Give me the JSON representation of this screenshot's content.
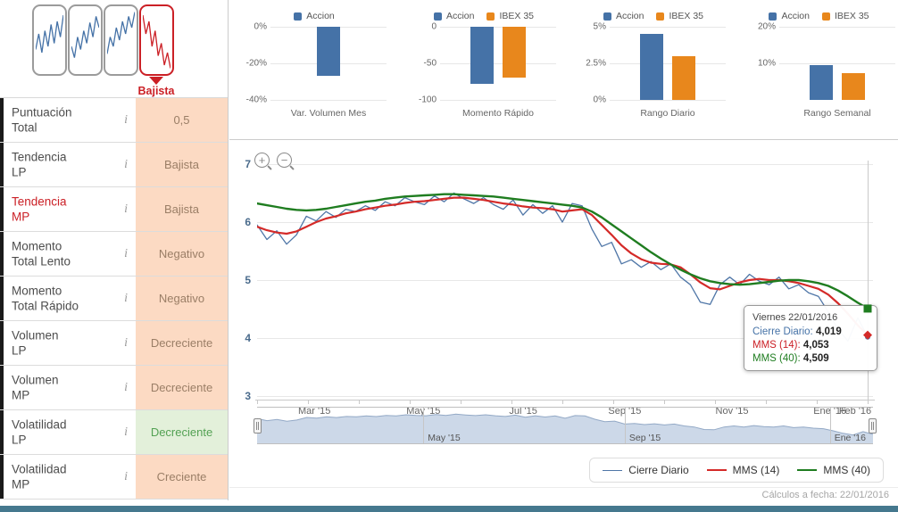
{
  "icons": {
    "info": "i",
    "zoom_in": "+",
    "zoom_out": "−"
  },
  "colors": {
    "accion": "#4572a7",
    "ibex": "#e8871c",
    "cierre": "#4f76a7",
    "mms14": "#d42a28",
    "mms40": "#1f7d20",
    "nav_fill": "#ccd8e8",
    "nav_line": "#93a9c6",
    "negative_bg": "#fcdac3",
    "positive_bg": "#e3f0da",
    "alert_red": "#cb2026",
    "footer_bar": "#45788e"
  },
  "sidebar": {
    "trend_label": "Bajista",
    "sparklines": [
      {
        "color": "#4572a7",
        "values": [
          35,
          60,
          30,
          65,
          40,
          75,
          45,
          80,
          55,
          90
        ]
      },
      {
        "color": "#4572a7",
        "values": [
          40,
          22,
          55,
          35,
          65,
          45,
          78,
          55,
          88,
          70
        ]
      },
      {
        "color": "#4572a7",
        "values": [
          28,
          55,
          40,
          70,
          50,
          80,
          60,
          88,
          70,
          95
        ]
      },
      {
        "color": "#cb2026",
        "values": [
          90,
          60,
          80,
          40,
          65,
          25,
          45,
          10,
          30,
          5
        ]
      }
    ],
    "rows": [
      {
        "label": "Puntuación\nTotal",
        "value": "0,5"
      },
      {
        "label": "Tendencia\nLP",
        "value": "Bajista"
      },
      {
        "label": "Tendencia\nMP",
        "value": "Bajista"
      },
      {
        "label": "Momento\nTotal Lento",
        "value": "Negativo"
      },
      {
        "label": "Momento\nTotal Rápido",
        "value": "Negativo"
      },
      {
        "label": "Volumen\nLP",
        "value": "Decreciente"
      },
      {
        "label": "Volumen\nMP",
        "value": "Decreciente"
      },
      {
        "label": "Volatilidad\nLP",
        "value": "Decreciente"
      },
      {
        "label": "Volatilidad\nMP",
        "value": "Creciente"
      }
    ]
  },
  "chart_data": [
    {
      "type": "bar",
      "title": "Var. Volumen Mes",
      "range": [
        0,
        -40
      ],
      "ticks": [
        {
          "label": "0%",
          "v": 0
        },
        {
          "label": "-20%",
          "v": -20
        },
        {
          "label": "-40%",
          "v": -40
        }
      ],
      "series": [
        {
          "name": "Accion",
          "color": "accion",
          "value": -27
        }
      ]
    },
    {
      "type": "bar",
      "title": "Momento Rápido",
      "range": [
        0,
        -100
      ],
      "ticks": [
        {
          "label": "0",
          "v": 0
        },
        {
          "label": "-50",
          "v": -50
        },
        {
          "label": "-100",
          "v": -100
        }
      ],
      "series": [
        {
          "name": "Accion",
          "color": "accion",
          "value": -78
        },
        {
          "name": "IBEX 35",
          "color": "ibex",
          "value": -69
        }
      ]
    },
    {
      "type": "bar",
      "title": "Rango Diario",
      "range": [
        5,
        0
      ],
      "ticks": [
        {
          "label": "5%",
          "v": 5
        },
        {
          "label": "2.5%",
          "v": 2.5
        },
        {
          "label": "0%",
          "v": 0
        }
      ],
      "series": [
        {
          "name": "Accion",
          "color": "accion",
          "value": 4.5
        },
        {
          "name": "IBEX 35",
          "color": "ibex",
          "value": 3.0
        }
      ]
    },
    {
      "type": "bar",
      "title": "Rango Semanal",
      "range": [
        20,
        0
      ],
      "ticks": [
        {
          "label": "20%",
          "v": 20
        },
        {
          "label": "10%",
          "v": 10
        }
      ],
      "series": [
        {
          "name": "Accion",
          "color": "accion",
          "value": 9.5
        },
        {
          "name": "IBEX 35",
          "color": "ibex",
          "value": 7.3
        }
      ]
    },
    {
      "type": "line",
      "title": "",
      "ylim": [
        3,
        7
      ],
      "yticks": [
        7,
        6,
        5,
        4,
        3
      ],
      "xticks": [
        {
          "label": "Mar '15",
          "f": 0.093
        },
        {
          "label": "May '15",
          "f": 0.27
        },
        {
          "label": "Jul '15",
          "f": 0.432
        },
        {
          "label": "Sep '15",
          "f": 0.597
        },
        {
          "label": "Nov '15",
          "f": 0.771
        },
        {
          "label": "Ene '16",
          "f": 0.93
        },
        {
          "label": "Feb '16",
          "f": 0.971
        }
      ],
      "navigator": {
        "labels": [
          {
            "label": "May '15",
            "f": 0.27
          },
          {
            "label": "Sep '15",
            "f": 0.597
          },
          {
            "label": "Ene '16",
            "f": 0.93
          }
        ]
      },
      "series": [
        {
          "name": "Cierre Diario",
          "color": "cierre",
          "width": 1.3,
          "values": [
            5.95,
            5.7,
            5.85,
            5.62,
            5.78,
            6.1,
            6.02,
            6.18,
            6.08,
            6.22,
            6.18,
            6.28,
            6.2,
            6.35,
            6.28,
            6.42,
            6.35,
            6.3,
            6.45,
            6.35,
            6.5,
            6.4,
            6.32,
            6.42,
            6.3,
            6.22,
            6.38,
            6.12,
            6.3,
            6.15,
            6.28,
            6.0,
            6.32,
            6.28,
            5.88,
            5.58,
            5.65,
            5.28,
            5.35,
            5.22,
            5.32,
            5.18,
            5.28,
            5.05,
            4.92,
            4.62,
            4.58,
            4.92,
            5.05,
            4.92,
            5.1,
            4.98,
            4.92,
            5.05,
            4.85,
            4.92,
            4.78,
            4.72,
            4.45,
            4.15,
            3.95,
            4.35,
            4.02
          ]
        },
        {
          "name": "MMS (14)",
          "color": "mms14",
          "width": 2.2,
          "values": [
            5.92,
            5.86,
            5.82,
            5.8,
            5.84,
            5.92,
            6.0,
            6.06,
            6.1,
            6.15,
            6.18,
            6.22,
            6.25,
            6.28,
            6.3,
            6.33,
            6.35,
            6.36,
            6.38,
            6.4,
            6.42,
            6.42,
            6.4,
            6.38,
            6.35,
            6.32,
            6.3,
            6.27,
            6.25,
            6.24,
            6.22,
            6.18,
            6.2,
            6.22,
            6.12,
            5.95,
            5.78,
            5.6,
            5.46,
            5.36,
            5.3,
            5.28,
            5.27,
            5.22,
            5.1,
            4.96,
            4.86,
            4.84,
            4.9,
            4.96,
            5.0,
            5.02,
            5.0,
            5.0,
            4.98,
            4.95,
            4.9,
            4.85,
            4.75,
            4.6,
            4.42,
            4.22,
            4.053
          ]
        },
        {
          "name": "MMS (40)",
          "color": "mms40",
          "width": 2.4,
          "values": [
            6.32,
            6.29,
            6.26,
            6.23,
            6.21,
            6.2,
            6.21,
            6.23,
            6.26,
            6.29,
            6.32,
            6.35,
            6.37,
            6.4,
            6.42,
            6.44,
            6.45,
            6.46,
            6.47,
            6.48,
            6.48,
            6.47,
            6.46,
            6.45,
            6.44,
            6.42,
            6.4,
            6.38,
            6.36,
            6.34,
            6.32,
            6.3,
            6.28,
            6.25,
            6.18,
            6.08,
            5.96,
            5.84,
            5.72,
            5.6,
            5.48,
            5.37,
            5.27,
            5.18,
            5.1,
            5.03,
            4.98,
            4.95,
            4.93,
            4.92,
            4.93,
            4.95,
            4.97,
            4.99,
            5.0,
            5.0,
            4.98,
            4.95,
            4.9,
            4.82,
            4.72,
            4.61,
            4.509
          ]
        }
      ]
    }
  ],
  "tooltip": {
    "header": "Viernes 22/01/2016",
    "rows": [
      {
        "label": "Cierre Diario",
        "value": "4,019"
      },
      {
        "label": "MMS (14)",
        "value": "4,053"
      },
      {
        "label": "MMS (40)",
        "value": "4,509"
      }
    ]
  },
  "footer": {
    "text": "Cálculos a fecha: 22/01/2016"
  }
}
